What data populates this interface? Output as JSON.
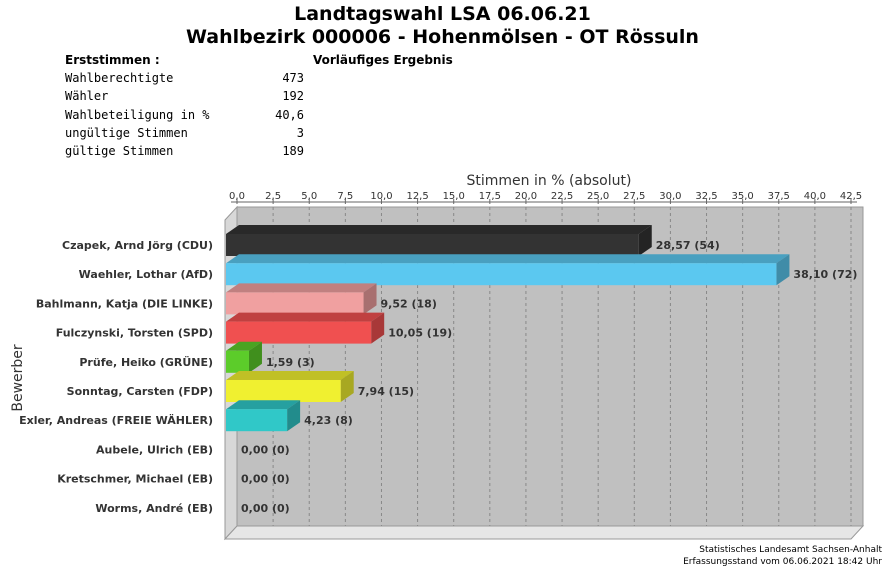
{
  "header": {
    "title_line1": "Landtagswahl LSA 06.06.21",
    "title_line2": "Wahlbezirk 000006 - Hohenmölsen - OT Rössuln",
    "section_label": "Erststimmen  :",
    "result_label": "Vorläufiges Ergebnis"
  },
  "stats": [
    {
      "label": "Wahlberechtigte",
      "value": "473"
    },
    {
      "label": "Wähler",
      "value": "192"
    },
    {
      "label": "Wahlbeteiligung in %",
      "value": "40,6"
    },
    {
      "label": "ungültige Stimmen",
      "value": "3"
    },
    {
      "label": "gültige Stimmen",
      "value": "189"
    }
  ],
  "chart_data": {
    "type": "bar",
    "orientation": "horizontal",
    "xlabel": "Stimmen in % (absolut)",
    "ylabel": "Bewerber",
    "xlim": [
      0,
      42.5
    ],
    "ticks": [
      "0,0",
      "2,5",
      "5,0",
      "7,5",
      "10,0",
      "12,5",
      "15,0",
      "17,5",
      "20,0",
      "22,5",
      "25,0",
      "27,5",
      "30,0",
      "32,5",
      "35,0",
      "37,5",
      "40,0",
      "42,5"
    ],
    "categories": [
      "Czapek, Arnd Jörg (CDU)",
      "Waehler, Lothar (AfD)",
      "Bahlmann, Katja (DIE LINKE)",
      "Fulczynski, Torsten (SPD)",
      "Prüfe, Heiko (GRÜNE)",
      "Sonntag, Carsten (FDP)",
      "Exler, Andreas (FREIE WÄHLER)",
      "Aubele, Ulrich (EB)",
      "Kretschmer, Michael (EB)",
      "Worms, André (EB)"
    ],
    "values": [
      28.57,
      38.1,
      9.52,
      10.05,
      1.59,
      7.94,
      4.23,
      0.0,
      0.0,
      0.0
    ],
    "labels": [
      "28,57 (54)",
      "38,10 (72)",
      "9,52 (18)",
      "10,05 (19)",
      "1,59 (3)",
      "7,94 (15)",
      "4,23 (8)",
      "0,00 (0)",
      "0,00 (0)",
      "0,00 (0)"
    ],
    "colors": [
      "#333333",
      "#5bc8f0",
      "#f0a0a0",
      "#f05050",
      "#5ccc2a",
      "#f0f030",
      "#30c8c8",
      "#cccccc",
      "#cccccc",
      "#cccccc"
    ],
    "grid": true
  },
  "footer": {
    "line1": "Statistisches Landesamt Sachsen-Anhalt",
    "line2": "Erfassungsstand vom 06.06.2021 18:42 Uhr"
  }
}
